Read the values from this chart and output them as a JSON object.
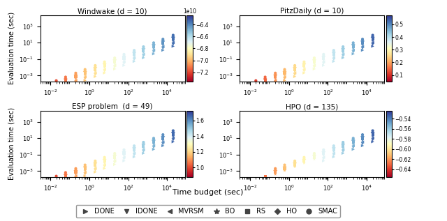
{
  "subplots": [
    {
      "title": "Windwake (d = 10)",
      "cbar_ticks": [
        -6.4,
        -6.6,
        -6.8,
        -7.0,
        -7.2
      ],
      "cbar_vmin": -7.35,
      "cbar_vmax": -6.25,
      "cbar_title": "1e10",
      "row": 0,
      "col": 0,
      "color_low": -7.25,
      "color_high": -6.35,
      "n_budgets": 14,
      "has_all_methods": true
    },
    {
      "title": "PitzDaily (d = 10)",
      "cbar_ticks": [
        0.1,
        0.2,
        0.3,
        0.4,
        0.5
      ],
      "cbar_vmin": 0.05,
      "cbar_vmax": 0.57,
      "cbar_title": "",
      "row": 0,
      "col": 1,
      "color_low": 0.08,
      "color_high": 0.53,
      "n_budgets": 14,
      "has_all_methods": true
    },
    {
      "title": "ESP problem  (d = 49)",
      "cbar_ticks": [
        1.0,
        1.2,
        1.4,
        1.6
      ],
      "cbar_vmin": 0.88,
      "cbar_vmax": 1.72,
      "cbar_title": "",
      "row": 1,
      "col": 0,
      "color_low": 0.95,
      "color_high": 1.65,
      "n_budgets": 14,
      "has_all_methods": true
    },
    {
      "title": "HPO (d = 135)",
      "cbar_ticks": [
        -0.54,
        -0.56,
        -0.58,
        -0.6,
        -0.62,
        -0.64
      ],
      "cbar_vmin": -0.655,
      "cbar_vmax": -0.525,
      "cbar_title": "",
      "row": 1,
      "col": 1,
      "color_low": -0.645,
      "color_high": -0.535,
      "n_budgets": 14,
      "has_all_methods": false
    }
  ],
  "x_budgets": [
    0.007,
    0.02,
    0.06,
    0.2,
    0.6,
    2.0,
    6,
    20,
    60,
    200,
    600,
    2000,
    6000,
    20000
  ],
  "methods": [
    "DONE",
    "IDONE",
    "MVRSM",
    "BO",
    "RS",
    "HO",
    "SMAC"
  ],
  "method_markers": {
    "DONE": ">",
    "IDONE": "v",
    "MVRSM": "<",
    "BO": "*",
    "RS": "s",
    "HO": "D",
    "SMAC": "o"
  },
  "legend_entries": [
    {
      "label": "DONE",
      "marker": ">",
      "ms": 5
    },
    {
      "label": "IDONE",
      "marker": "v",
      "ms": 5
    },
    {
      "label": "MVRSM",
      "marker": "<",
      "ms": 5
    },
    {
      "label": "BO",
      "marker": "*",
      "ms": 6
    },
    {
      "label": "RS",
      "marker": "s",
      "ms": 4
    },
    {
      "label": "HO",
      "marker": "D",
      "ms": 4
    },
    {
      "label": "SMAC",
      "marker": "o",
      "ms": 5
    }
  ],
  "xlabel": "Time budget (sec)",
  "ylabel": "Evaluation time (sec)",
  "figsize": [
    6.4,
    3.17
  ],
  "dpi": 100
}
